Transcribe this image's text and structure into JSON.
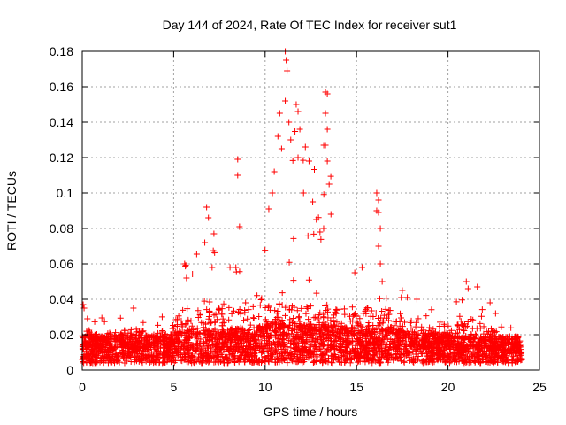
{
  "chart_data": {
    "type": "scatter",
    "title": "Day 144 of 2024, Rate Of TEC Index for receiver sut1",
    "xlabel": "GPS time / hours",
    "ylabel": "ROTI / TECUs",
    "xlim": [
      0,
      25
    ],
    "ylim": [
      0,
      0.18
    ],
    "xticks": [
      0,
      5,
      10,
      15,
      20,
      25
    ],
    "yticks": [
      0,
      0.02,
      0.04,
      0.06,
      0.08,
      0.1,
      0.12,
      0.14,
      0.16,
      0.18
    ],
    "ytick_labels": [
      "0",
      "0.02",
      "0.04",
      "0.06",
      "0.08",
      "0.1",
      "0.12",
      "0.14",
      "0.16",
      "0.18"
    ],
    "grid": true,
    "marker": "plus",
    "marker_color": "#ff0000",
    "series": [
      {
        "name": "sut1",
        "note": "dense cloud of ROTI samples between 0 and 24 h, mostly 0.005-0.03 TECU/min",
        "envelope": [
          {
            "x": 0.0,
            "base": 0.012,
            "peak": 0.037
          },
          {
            "x": 1.0,
            "base": 0.011,
            "peak": 0.03
          },
          {
            "x": 2.0,
            "base": 0.012,
            "peak": 0.032
          },
          {
            "x": 3.0,
            "base": 0.012,
            "peak": 0.035
          },
          {
            "x": 4.0,
            "base": 0.012,
            "peak": 0.028
          },
          {
            "x": 5.0,
            "base": 0.013,
            "peak": 0.04
          },
          {
            "x": 5.5,
            "base": 0.015,
            "peak": 0.06
          },
          {
            "x": 6.8,
            "base": 0.015,
            "peak": 0.092
          },
          {
            "x": 7.2,
            "base": 0.015,
            "peak": 0.077
          },
          {
            "x": 8.0,
            "base": 0.015,
            "peak": 0.05
          },
          {
            "x": 8.6,
            "base": 0.016,
            "peak": 0.119
          },
          {
            "x": 9.5,
            "base": 0.016,
            "peak": 0.07
          },
          {
            "x": 10.2,
            "base": 0.018,
            "peak": 0.091
          },
          {
            "x": 10.6,
            "base": 0.018,
            "peak": 0.132
          },
          {
            "x": 11.1,
            "base": 0.019,
            "peak": 0.18
          },
          {
            "x": 11.8,
            "base": 0.019,
            "peak": 0.15
          },
          {
            "x": 12.3,
            "base": 0.018,
            "peak": 0.12
          },
          {
            "x": 13.3,
            "base": 0.018,
            "peak": 0.157
          },
          {
            "x": 14.0,
            "base": 0.017,
            "peak": 0.06
          },
          {
            "x": 15.0,
            "base": 0.016,
            "peak": 0.058
          },
          {
            "x": 16.2,
            "base": 0.016,
            "peak": 0.1
          },
          {
            "x": 17.0,
            "base": 0.015,
            "peak": 0.045
          },
          {
            "x": 18.0,
            "base": 0.014,
            "peak": 0.045
          },
          {
            "x": 19.0,
            "base": 0.013,
            "peak": 0.035
          },
          {
            "x": 20.0,
            "base": 0.012,
            "peak": 0.03
          },
          {
            "x": 21.0,
            "base": 0.011,
            "peak": 0.05
          },
          {
            "x": 22.0,
            "base": 0.011,
            "peak": 0.04
          },
          {
            "x": 23.0,
            "base": 0.011,
            "peak": 0.03
          },
          {
            "x": 24.0,
            "base": 0.011,
            "peak": 0.02
          }
        ],
        "highlights": [
          {
            "x": 0.05,
            "y": 0.037
          },
          {
            "x": 0.1,
            "y": 0.035
          },
          {
            "x": 2.8,
            "y": 0.035
          },
          {
            "x": 5.6,
            "y": 0.06
          },
          {
            "x": 5.7,
            "y": 0.052
          },
          {
            "x": 6.8,
            "y": 0.092
          },
          {
            "x": 6.9,
            "y": 0.086
          },
          {
            "x": 6.7,
            "y": 0.072
          },
          {
            "x": 7.2,
            "y": 0.077
          },
          {
            "x": 7.1,
            "y": 0.058
          },
          {
            "x": 8.5,
            "y": 0.119
          },
          {
            "x": 8.5,
            "y": 0.11
          },
          {
            "x": 8.6,
            "y": 0.081
          },
          {
            "x": 8.4,
            "y": 0.058
          },
          {
            "x": 10.2,
            "y": 0.091
          },
          {
            "x": 10.4,
            "y": 0.1
          },
          {
            "x": 10.5,
            "y": 0.112
          },
          {
            "x": 10.7,
            "y": 0.132
          },
          {
            "x": 10.8,
            "y": 0.145
          },
          {
            "x": 10.9,
            "y": 0.125
          },
          {
            "x": 11.1,
            "y": 0.18
          },
          {
            "x": 11.15,
            "y": 0.175
          },
          {
            "x": 11.2,
            "y": 0.169
          },
          {
            "x": 11.1,
            "y": 0.152
          },
          {
            "x": 11.3,
            "y": 0.14
          },
          {
            "x": 11.4,
            "y": 0.13
          },
          {
            "x": 11.7,
            "y": 0.15
          },
          {
            "x": 11.8,
            "y": 0.146
          },
          {
            "x": 11.9,
            "y": 0.136
          },
          {
            "x": 11.8,
            "y": 0.12
          },
          {
            "x": 12.2,
            "y": 0.126
          },
          {
            "x": 12.4,
            "y": 0.118
          },
          {
            "x": 12.1,
            "y": 0.1
          },
          {
            "x": 12.6,
            "y": 0.095
          },
          {
            "x": 13.3,
            "y": 0.157
          },
          {
            "x": 13.4,
            "y": 0.156
          },
          {
            "x": 13.3,
            "y": 0.145
          },
          {
            "x": 13.4,
            "y": 0.136
          },
          {
            "x": 13.3,
            "y": 0.127
          },
          {
            "x": 13.4,
            "y": 0.118
          },
          {
            "x": 13.5,
            "y": 0.105
          },
          {
            "x": 13.6,
            "y": 0.088
          },
          {
            "x": 13.2,
            "y": 0.08
          },
          {
            "x": 13.0,
            "y": 0.078
          },
          {
            "x": 12.8,
            "y": 0.085
          },
          {
            "x": 16.1,
            "y": 0.1
          },
          {
            "x": 16.2,
            "y": 0.096
          },
          {
            "x": 16.1,
            "y": 0.09
          },
          {
            "x": 16.2,
            "y": 0.089
          },
          {
            "x": 16.3,
            "y": 0.08
          },
          {
            "x": 16.2,
            "y": 0.07
          },
          {
            "x": 16.3,
            "y": 0.06
          },
          {
            "x": 16.4,
            "y": 0.05
          },
          {
            "x": 15.3,
            "y": 0.058
          },
          {
            "x": 14.9,
            "y": 0.055
          },
          {
            "x": 17.5,
            "y": 0.045
          },
          {
            "x": 18.3,
            "y": 0.04
          },
          {
            "x": 21.0,
            "y": 0.05
          },
          {
            "x": 21.1,
            "y": 0.046
          },
          {
            "x": 21.6,
            "y": 0.047
          },
          {
            "x": 22.3,
            "y": 0.038
          },
          {
            "x": 22.6,
            "y": 0.032
          }
        ]
      }
    ]
  }
}
